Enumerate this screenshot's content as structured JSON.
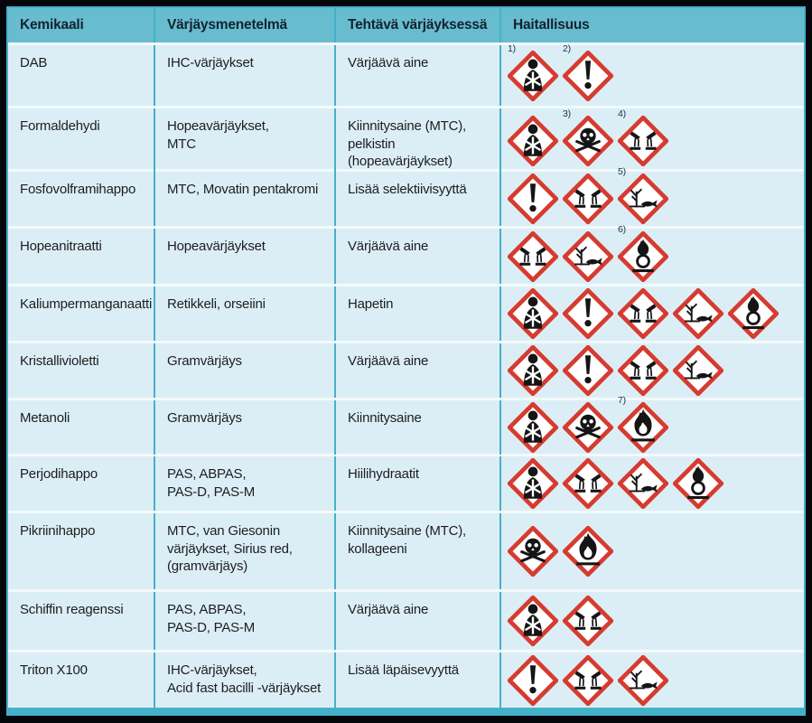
{
  "table": {
    "headers": [
      "Kemikaali",
      "Värjäysmenetelmä",
      "Tehtävä värjäyksessä",
      "Haitallisuus"
    ],
    "rows": [
      {
        "kemikaali": "DAB",
        "menetelma": "IHC-värjäykset",
        "tehtava": "Värjäävä aine",
        "pictograms": [
          {
            "type": "health-hazard",
            "note": "1)"
          },
          {
            "type": "exclamation",
            "note": "2)"
          }
        ]
      },
      {
        "kemikaali": "Formaldehydi",
        "menetelma": "Hopeavärjäykset,\nMTC",
        "tehtava": "Kiinnitysaine (MTC),\npelkistin (hopeavärjäykset)",
        "pictograms": [
          {
            "type": "health-hazard",
            "note": ""
          },
          {
            "type": "skull",
            "note": "3)"
          },
          {
            "type": "corrosive",
            "note": "4)"
          }
        ]
      },
      {
        "kemikaali": "Fosfovolframihappo",
        "menetelma": "MTC, Movatin pentakromi",
        "tehtava": "Lisää selektiivisyyttä",
        "pictograms": [
          {
            "type": "exclamation",
            "note": ""
          },
          {
            "type": "corrosive",
            "note": ""
          },
          {
            "type": "environment",
            "note": "5)"
          }
        ]
      },
      {
        "kemikaali": "Hopeanitraatti",
        "menetelma": "Hopeavärjäykset",
        "tehtava": "Värjäävä aine",
        "pictograms": [
          {
            "type": "corrosive",
            "note": ""
          },
          {
            "type": "environment",
            "note": ""
          },
          {
            "type": "oxidizer",
            "note": "6)"
          }
        ]
      },
      {
        "kemikaali": "Kaliumpermanganaatti",
        "menetelma": "Retikkeli, orseiini",
        "tehtava": "Hapetin",
        "pictograms": [
          {
            "type": "health-hazard",
            "note": ""
          },
          {
            "type": "exclamation",
            "note": ""
          },
          {
            "type": "corrosive",
            "note": ""
          },
          {
            "type": "environment",
            "note": ""
          },
          {
            "type": "oxidizer",
            "note": ""
          }
        ]
      },
      {
        "kemikaali": "Kristallivioletti",
        "menetelma": "Gramvärjäys",
        "tehtava": "Värjäävä aine",
        "pictograms": [
          {
            "type": "health-hazard",
            "note": ""
          },
          {
            "type": "exclamation",
            "note": ""
          },
          {
            "type": "corrosive",
            "note": ""
          },
          {
            "type": "environment",
            "note": ""
          }
        ]
      },
      {
        "kemikaali": "Metanoli",
        "menetelma": "Gramvärjäys",
        "tehtava": "Kiinnitysaine",
        "pictograms": [
          {
            "type": "health-hazard",
            "note": ""
          },
          {
            "type": "skull",
            "note": ""
          },
          {
            "type": "flammable",
            "note": "7)"
          }
        ]
      },
      {
        "kemikaali": "Perjodihappo",
        "menetelma": "PAS, ABPAS,\nPAS-D, PAS-M",
        "tehtava": "Hiilihydraatit",
        "pictograms": [
          {
            "type": "health-hazard",
            "note": ""
          },
          {
            "type": "corrosive",
            "note": ""
          },
          {
            "type": "environment",
            "note": ""
          },
          {
            "type": "oxidizer",
            "note": ""
          }
        ]
      },
      {
        "kemikaali": "Pikriinihappo",
        "menetelma": "MTC, van Giesonin\nvärjäykset, Sirius red,\n(gramvärjäys)",
        "tehtava": "Kiinnitysaine (MTC),\nkollageeni",
        "pictograms": [
          {
            "type": "skull",
            "note": ""
          },
          {
            "type": "flammable",
            "note": ""
          }
        ]
      },
      {
        "kemikaali": "Schiffin reagenssi",
        "menetelma": "PAS, ABPAS,\nPAS-D, PAS-M",
        "tehtava": "Värjäävä aine",
        "pictograms": [
          {
            "type": "health-hazard",
            "note": ""
          },
          {
            "type": "corrosive",
            "note": ""
          }
        ]
      },
      {
        "kemikaali": "Triton X100",
        "menetelma": "IHC-värjäykset,\nAcid fast bacilli -värjäykset",
        "tehtava": "Lisää läpäisevyyttä",
        "pictograms": [
          {
            "type": "exclamation",
            "note": ""
          },
          {
            "type": "corrosive",
            "note": ""
          },
          {
            "type": "environment",
            "note": ""
          }
        ]
      }
    ]
  },
  "colors": {
    "header_bg": "#68bcd0",
    "row_bg": "#dceef5",
    "grid_teal": "#45b1c8",
    "row_separator": "#f3fafc",
    "pictogram_red": "#d63b30",
    "symbol_black": "#151515",
    "note_color": "#1c2f4a",
    "outer_border": "#05060c"
  }
}
